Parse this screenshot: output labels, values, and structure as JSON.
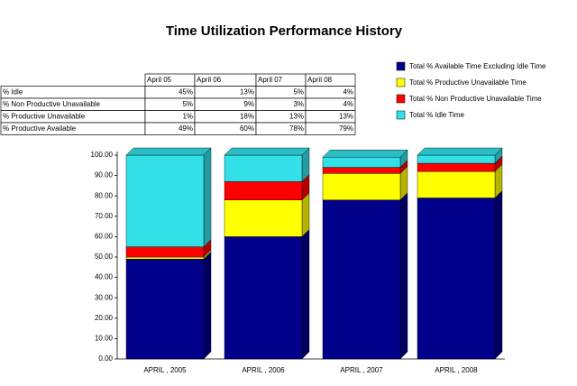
{
  "chart_data": {
    "type": "stacked-bar-3d",
    "title": "Time Utilization Performance History",
    "categories": [
      "APRIL , 2005",
      "APRIL , 2006",
      "APRIL , 2007",
      "APRIL , 2008"
    ],
    "series": [
      {
        "name": "Total % Available Time Excluding Idle Time",
        "color": "#00008b",
        "values": [
          49,
          60,
          78,
          79
        ]
      },
      {
        "name": "Total % Productive Unavailable Time",
        "color": "#ffff00",
        "values": [
          1,
          18,
          13,
          13
        ]
      },
      {
        "name": "Total % Non Productive Unavailable Time",
        "color": "#ff0000",
        "values": [
          5,
          9,
          3,
          4
        ]
      },
      {
        "name": "Total % Idle Time",
        "color": "#33e0e8",
        "values": [
          45,
          13,
          5,
          4
        ]
      }
    ],
    "ylim": [
      0,
      100
    ],
    "yticks": [
      {
        "value": 0,
        "label": "0.00"
      },
      {
        "value": 10,
        "label": "10.00"
      },
      {
        "value": 20,
        "label": "20.00"
      },
      {
        "value": 30,
        "label": "30.00"
      },
      {
        "value": 40,
        "label": "40.00"
      },
      {
        "value": 50,
        "label": "50.00"
      },
      {
        "value": 60,
        "label": "60.00"
      },
      {
        "value": 70,
        "label": "70.00"
      },
      {
        "value": 80,
        "label": "80.00"
      },
      {
        "value": 90,
        "label": "90.00"
      },
      {
        "value": 100,
        "label": "100.00"
      }
    ],
    "legend": "upper right"
  },
  "table": {
    "columns": [
      "April 05",
      "April 06",
      "April 07",
      "April 08"
    ],
    "rows": [
      {
        "label": "% Idle",
        "cells": [
          "45%",
          "13%",
          "5%",
          "4%"
        ]
      },
      {
        "label": "% Non Productive Unavailable",
        "cells": [
          "5%",
          "9%",
          "3%",
          "4%"
        ]
      },
      {
        "label": "% Productive Unavailable",
        "cells": [
          "1%",
          "18%",
          "13%",
          "13%"
        ]
      },
      {
        "label": "% Productive Available",
        "cells": [
          "49%",
          "60%",
          "78%",
          "79%"
        ]
      }
    ]
  }
}
